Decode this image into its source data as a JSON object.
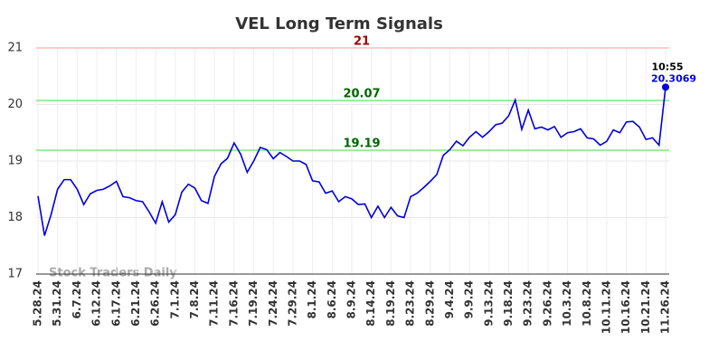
{
  "chart_data": {
    "type": "line",
    "title": "VEL Long Term Signals",
    "watermark": "Stock Traders Daily",
    "categories": [
      "5.28.24",
      null,
      null,
      "5.31.24",
      null,
      null,
      "6.7.24",
      null,
      null,
      "6.12.24",
      null,
      null,
      "6.17.24",
      null,
      null,
      "6.21.24",
      null,
      null,
      "6.26.24",
      null,
      null,
      "7.1.24",
      null,
      null,
      "7.8.24",
      null,
      null,
      "7.11.24",
      null,
      null,
      "7.16.24",
      null,
      null,
      "7.19.24",
      null,
      null,
      "7.24.24",
      null,
      null,
      "7.29.24",
      null,
      null,
      "8.1.24",
      null,
      null,
      "8.6.24",
      null,
      null,
      "8.9.24",
      null,
      null,
      "8.14.24",
      null,
      null,
      "8.19.24",
      null,
      null,
      "8.23.24",
      null,
      null,
      "8.29.24",
      null,
      null,
      "9.4.24",
      null,
      null,
      "9.9.24",
      null,
      null,
      "9.13.24",
      null,
      null,
      "9.18.24",
      null,
      null,
      "9.23.24",
      null,
      null,
      "9.26.24",
      null,
      null,
      "10.3.24",
      null,
      null,
      "10.8.24",
      null,
      null,
      "10.11.24",
      null,
      null,
      "10.16.24",
      null,
      null,
      "10.21.24",
      null,
      null,
      "11.26.24"
    ],
    "series": [
      {
        "name": "VEL",
        "color": "#0000dd",
        "values": [
          18.38,
          17.68,
          18.05,
          18.5,
          18.67,
          18.67,
          18.5,
          18.23,
          18.42,
          18.48,
          18.5,
          18.56,
          18.64,
          18.37,
          18.35,
          18.3,
          18.28,
          18.1,
          17.9,
          18.28,
          17.92,
          18.05,
          18.45,
          18.59,
          18.52,
          18.3,
          18.25,
          18.73,
          18.95,
          19.05,
          19.32,
          19.12,
          18.8,
          19.0,
          19.24,
          19.2,
          19.04,
          19.15,
          19.08,
          19.0,
          19.0,
          18.94,
          18.65,
          18.63,
          18.43,
          18.47,
          18.28,
          18.37,
          18.33,
          18.23,
          18.24,
          18.0,
          18.2,
          18.0,
          18.18,
          18.03,
          18.0,
          18.37,
          18.43,
          18.53,
          18.64,
          18.76,
          19.1,
          19.2,
          19.35,
          19.27,
          19.42,
          19.52,
          19.42,
          19.52,
          19.64,
          19.67,
          19.8,
          20.08,
          19.56,
          19.9,
          19.57,
          19.6,
          19.55,
          19.61,
          19.42,
          19.5,
          19.52,
          19.57,
          19.41,
          19.39,
          19.28,
          19.35,
          19.55,
          19.5,
          19.69,
          19.7,
          19.6,
          19.38,
          19.41,
          19.28,
          20.3069
        ]
      }
    ],
    "last_label": "10:55",
    "hlines": [
      {
        "value": 21,
        "color": "#ffcccc",
        "label_color": "#990000"
      },
      {
        "value": 20.07,
        "color": "#99ee99",
        "label_color": "#006600"
      },
      {
        "value": 19.19,
        "color": "#99ee99",
        "label_color": "#006600"
      }
    ],
    "ylim": [
      17,
      21
    ],
    "yticks": [
      17,
      18,
      19,
      20,
      21
    ],
    "grid": true
  }
}
